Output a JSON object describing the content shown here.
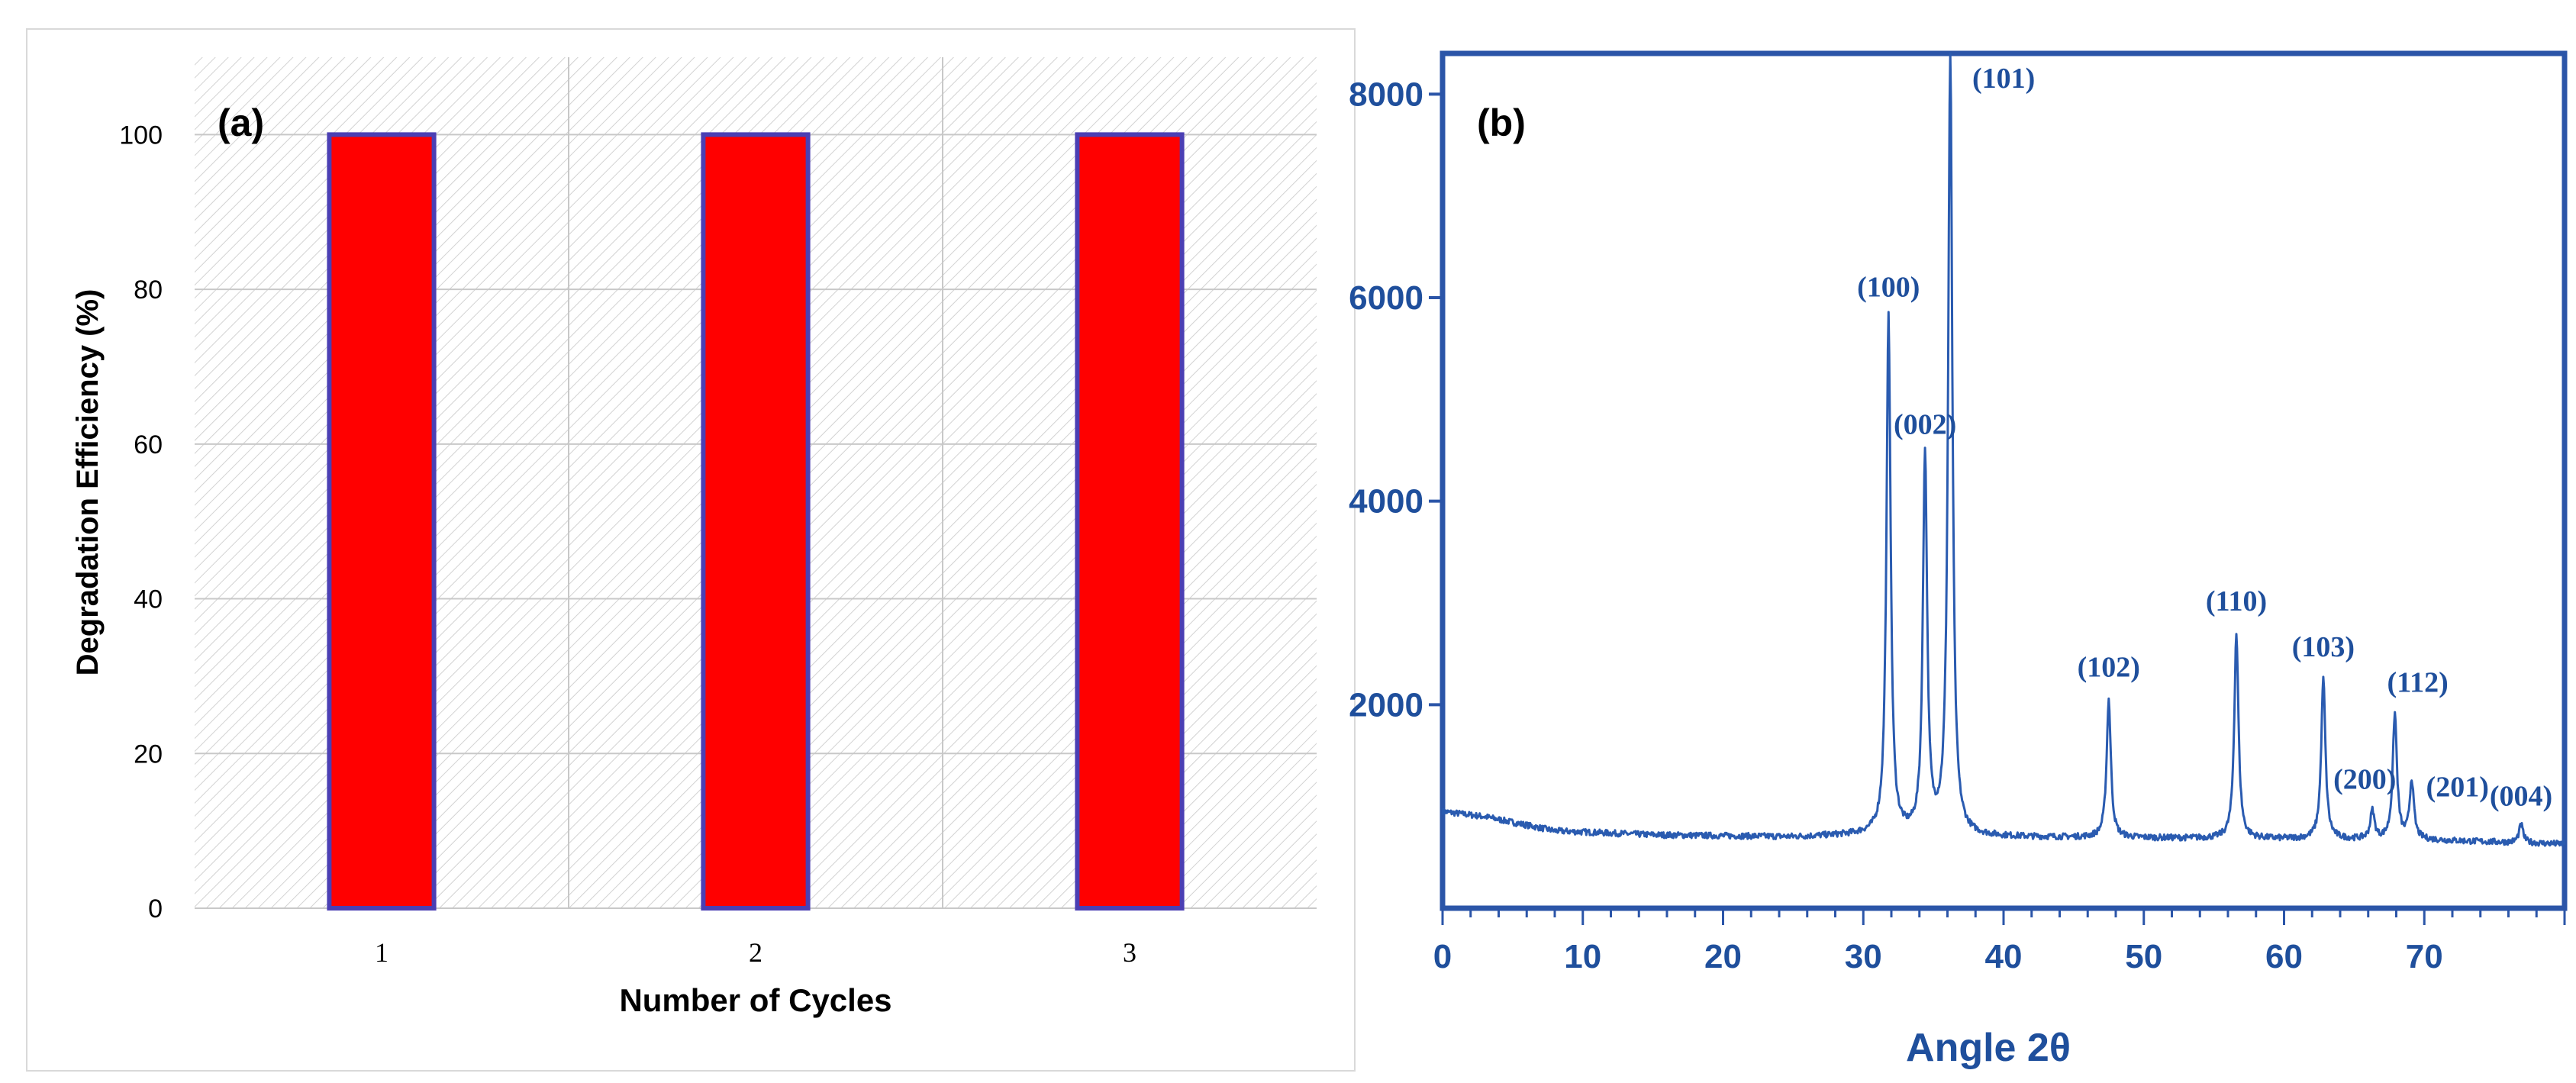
{
  "chart_data": [
    {
      "panel_label": "(a)",
      "type": "bar",
      "xlabel": "Number of Cycles",
      "ylabel": "Degradation Efficiency (%)",
      "categories": [
        "1",
        "2",
        "3"
      ],
      "values": [
        100,
        100,
        100
      ],
      "ylim": [
        0,
        110
      ],
      "yticks": [
        0,
        20,
        40,
        60,
        80,
        100
      ],
      "grid": true,
      "colors": {
        "bar_fill": "#ff0000",
        "bar_edge": "#4b3fb4",
        "hatch": "#d2d2d2",
        "grid": "#c8c8c8"
      }
    },
    {
      "panel_label": "(b)",
      "type": "line",
      "xlabel": "Angle 2θ",
      "ylabel": "",
      "xlim": [
        0,
        80
      ],
      "ylim": [
        0,
        8400
      ],
      "xticks": [
        0,
        10,
        20,
        30,
        40,
        50,
        60,
        70
      ],
      "yticks": [
        2000,
        4000,
        6000,
        8000
      ],
      "baseline": [
        [
          0,
          950
        ],
        [
          3,
          900
        ],
        [
          8,
          760
        ],
        [
          15,
          720
        ],
        [
          25,
          700
        ],
        [
          30,
          720
        ],
        [
          40,
          700
        ],
        [
          50,
          690
        ],
        [
          60,
          680
        ],
        [
          70,
          670
        ],
        [
          80,
          630
        ]
      ],
      "peaks": [
        {
          "label": "(100)",
          "x": 31.8,
          "y": 5800
        },
        {
          "label": "(002)",
          "x": 34.4,
          "y": 4450
        },
        {
          "label": "(101)",
          "x": 36.2,
          "y": 8400
        },
        {
          "label": "(102)",
          "x": 47.5,
          "y": 2050
        },
        {
          "label": "(110)",
          "x": 56.6,
          "y": 2700
        },
        {
          "label": "(103)",
          "x": 62.8,
          "y": 2250
        },
        {
          "label": "(200)",
          "x": 66.3,
          "y": 950
        },
        {
          "label": "(112)",
          "x": 67.9,
          "y": 1900
        },
        {
          "label": "(201)",
          "x": 69.1,
          "y": 1250
        },
        {
          "label": "(004)",
          "x": 76.9,
          "y": 820
        }
      ],
      "colors": {
        "line": "#2a5bb0",
        "axis": "#2b55a8",
        "text": "#1f4f9c"
      }
    }
  ]
}
